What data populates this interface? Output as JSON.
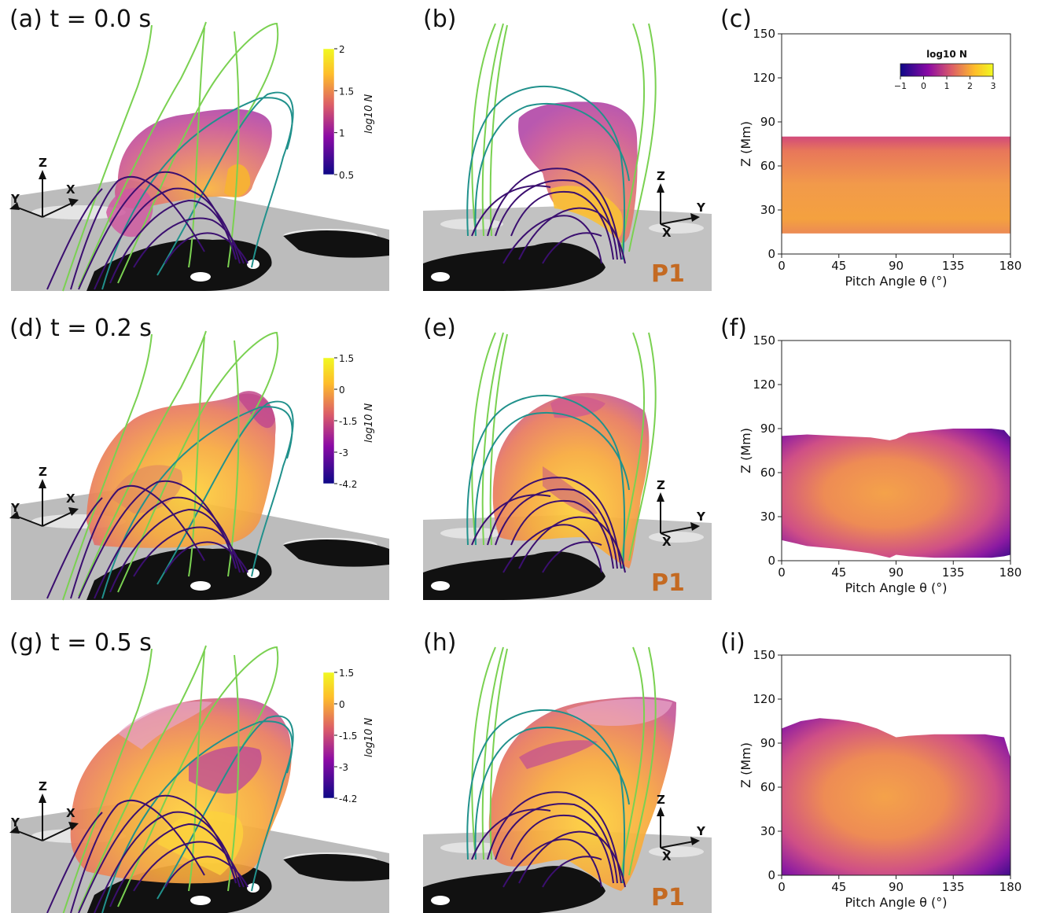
{
  "chart_data": [
    {
      "type": "volume-render",
      "panel_label": "(a)",
      "title": "t = 0.0 s",
      "view": "side",
      "colorbar": {
        "label": "log10 N",
        "ticks": [
          "2",
          "1.5",
          "1",
          "0.5"
        ],
        "range": [
          0.5,
          2
        ]
      },
      "axes": [
        "Z",
        "Y",
        "X"
      ]
    },
    {
      "type": "volume-render",
      "panel_label": "(b)",
      "view": "front",
      "annotation": "P1",
      "axes": [
        "Z",
        "Y",
        "X"
      ]
    },
    {
      "type": "heatmap",
      "panel_label": "(c)",
      "xlabel": "Pitch Angle θ (°)",
      "ylabel": "Z (Mm)",
      "xlim": [
        0,
        180
      ],
      "ylim": [
        0,
        150
      ],
      "xticks": [
        "0",
        "45",
        "90",
        "135",
        "180"
      ],
      "yticks": [
        "0",
        "30",
        "60",
        "90",
        "120",
        "150"
      ],
      "colorbar": {
        "label": "log10 N",
        "ticks": [
          "−1",
          "0",
          "1",
          "2",
          "3"
        ],
        "range": [
          -1,
          3
        ],
        "placement": "top-right"
      },
      "filled_region": {
        "z_bottom": [
          14,
          14
        ],
        "z_top": [
          80,
          80
        ],
        "theta": [
          0,
          180
        ]
      }
    },
    {
      "type": "volume-render",
      "panel_label": "(d)",
      "title": "t = 0.2 s",
      "view": "side",
      "colorbar": {
        "label": "log10 N",
        "ticks": [
          "1.5",
          "0",
          "-1.5",
          "-3",
          "-4.2"
        ],
        "range": [
          -4.2,
          1.5
        ]
      },
      "axes": [
        "Z",
        "Y",
        "X"
      ]
    },
    {
      "type": "volume-render",
      "panel_label": "(e)",
      "view": "front",
      "annotation": "P1",
      "axes": [
        "Z",
        "Y",
        "X"
      ]
    },
    {
      "type": "heatmap",
      "panel_label": "(f)",
      "xlabel": "Pitch Angle θ (°)",
      "ylabel": "Z (Mm)",
      "xlim": [
        0,
        180
      ],
      "ylim": [
        0,
        150
      ],
      "xticks": [
        "0",
        "45",
        "90",
        "135",
        "180"
      ],
      "yticks": [
        "0",
        "30",
        "60",
        "90",
        "120",
        "150"
      ],
      "boundary": {
        "theta": [
          0,
          20,
          45,
          70,
          85,
          90,
          100,
          120,
          135,
          150,
          165,
          175,
          180
        ],
        "z_top": [
          85,
          86,
          85,
          84,
          82,
          83,
          87,
          89,
          90,
          90,
          90,
          89,
          84
        ],
        "z_bottom": [
          14,
          10,
          8,
          5,
          2,
          4,
          3,
          2,
          2,
          2,
          2,
          3,
          4
        ]
      }
    },
    {
      "type": "volume-render",
      "panel_label": "(g)",
      "title": "t = 0.5 s",
      "view": "side",
      "colorbar": {
        "label": "log10 N",
        "ticks": [
          "1.5",
          "0",
          "-1.5",
          "-3",
          "-4.2"
        ],
        "range": [
          -4.2,
          1.5
        ]
      },
      "axes": [
        "Z",
        "Y",
        "X"
      ]
    },
    {
      "type": "volume-render",
      "panel_label": "(h)",
      "view": "front",
      "annotation": "P1",
      "axes": [
        "Z",
        "Y",
        "X"
      ]
    },
    {
      "type": "heatmap",
      "panel_label": "(i)",
      "xlabel": "Pitch Angle θ (°)",
      "ylabel": "Z (Mm)",
      "xlim": [
        0,
        180
      ],
      "ylim": [
        0,
        150
      ],
      "xticks": [
        "0",
        "45",
        "90",
        "135",
        "180"
      ],
      "yticks": [
        "0",
        "30",
        "60",
        "90",
        "120",
        "150"
      ],
      "boundary": {
        "theta": [
          0,
          15,
          30,
          45,
          60,
          75,
          85,
          90,
          100,
          120,
          135,
          160,
          175,
          180
        ],
        "z_top": [
          100,
          105,
          107,
          106,
          104,
          100,
          96,
          94,
          95,
          96,
          96,
          96,
          94,
          80
        ],
        "z_bottom": [
          0,
          0,
          0,
          0,
          0,
          0,
          0,
          0,
          0,
          0,
          0,
          0,
          0,
          0
        ]
      }
    }
  ],
  "colors": {
    "colormap_plasma": [
      "#0d0887",
      "#5302a3",
      "#8b0aa5",
      "#b83289",
      "#db5c68",
      "#f48849",
      "#febd2a",
      "#f0f921"
    ],
    "field_line_low": "#3b0f70",
    "field_line_mid": "#21918c",
    "field_line_high": "#7ad151",
    "p1_annotation": "#c46a22"
  }
}
